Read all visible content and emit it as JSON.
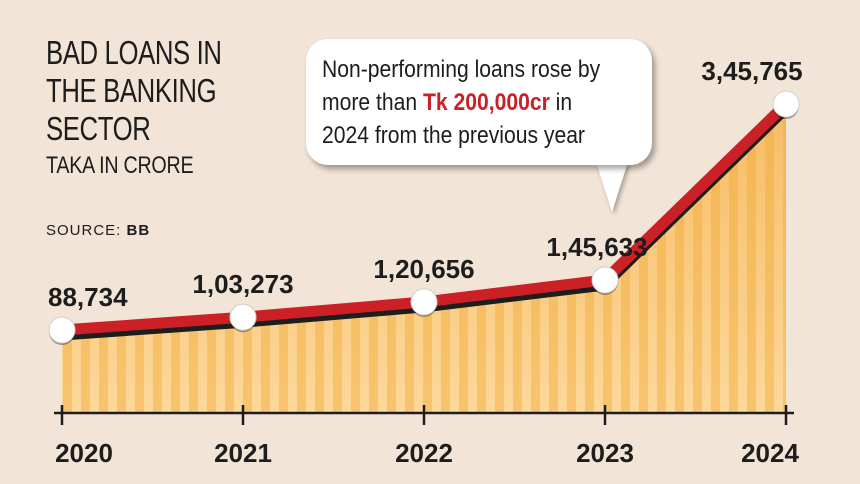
{
  "header": {
    "title_lines": [
      "BAD LOANS IN",
      "THE BANKING",
      "SECTOR"
    ],
    "subtitle": "TAKA IN CRORE",
    "source_label": "SOURCE:",
    "source_value": "BB"
  },
  "callout": {
    "line1": "Non-performing loans rose by",
    "line2_pre": "more than ",
    "line2_highlight": "Tk 200,000cr",
    "line2_post": " in",
    "line3": "2024 from the previous year"
  },
  "colors": {
    "line": "#cc2027",
    "area_light": "#fcd89a",
    "area_dark": "#f3ad3c",
    "background": "#f2e4d6"
  },
  "chart_data": {
    "type": "area",
    "title": "BAD LOANS IN THE BANKING SECTOR",
    "subtitle": "TAKA IN CRORE",
    "categories": [
      "2020",
      "2021",
      "2022",
      "2023",
      "2024"
    ],
    "values": [
      88734,
      103273,
      120656,
      145633,
      345765
    ],
    "value_labels": [
      "88,734",
      "1,03,273",
      "1,20,656",
      "1,45,633",
      "3,45,765"
    ],
    "ylim": [
      0,
      345765
    ],
    "grid": false,
    "legend": "none"
  }
}
